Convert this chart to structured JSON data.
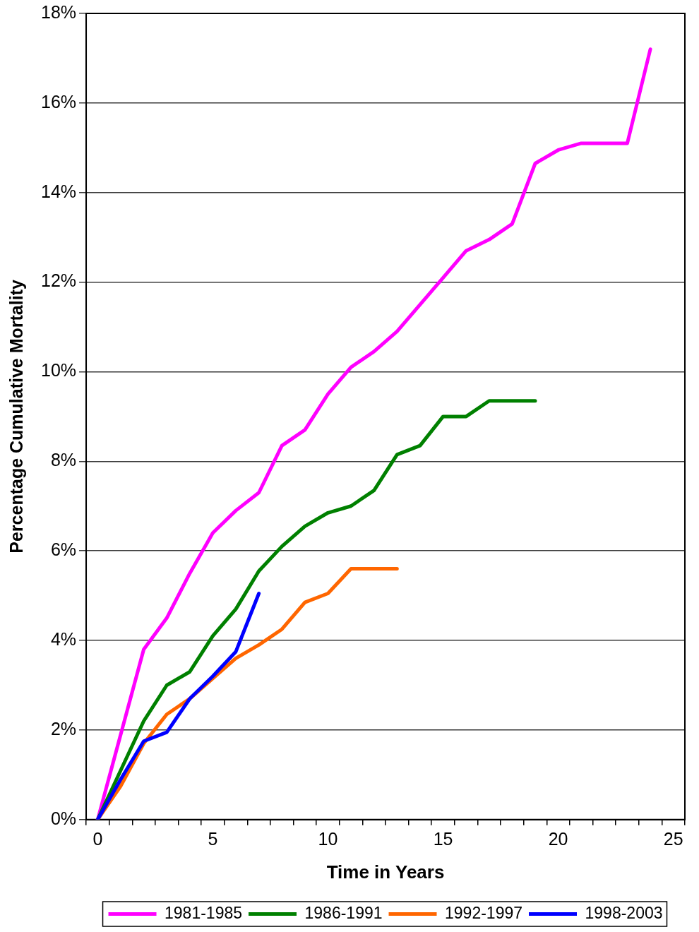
{
  "chart_data": {
    "type": "line",
    "xlabel": "Time in Years",
    "ylabel": "Percentage Cumulative Mortality",
    "categories": [
      "0",
      null,
      null,
      null,
      null,
      "5",
      null,
      null,
      null,
      null,
      "10",
      null,
      null,
      null,
      null,
      "15",
      null,
      null,
      null,
      null,
      "20",
      null,
      null,
      null,
      null,
      "25"
    ],
    "series": [
      {
        "name": "1981-1985",
        "color": "#ff00ff",
        "values": [
          0,
          1.9,
          3.8,
          4.5,
          5.5,
          6.4,
          6.9,
          7.3,
          8.35,
          8.7,
          9.5,
          10.1,
          10.45,
          10.9,
          11.5,
          12.1,
          12.7,
          12.95,
          13.3,
          14.65,
          14.95,
          15.1,
          15.1,
          15.1,
          17.2,
          null
        ]
      },
      {
        "name": "1986-1991",
        "color": "#008000",
        "values": [
          0,
          1.1,
          2.2,
          3.0,
          3.3,
          4.1,
          4.7,
          5.55,
          6.1,
          6.55,
          6.85,
          7.0,
          7.35,
          8.15,
          8.35,
          9.0,
          9.0,
          9.35,
          9.35,
          9.35,
          null,
          null,
          null,
          null,
          null,
          null
        ]
      },
      {
        "name": "1992-1997",
        "color": "#ff6600",
        "values": [
          0,
          0.75,
          1.7,
          2.35,
          2.7,
          3.15,
          3.6,
          3.9,
          4.25,
          4.85,
          5.05,
          5.6,
          5.6,
          5.6,
          null,
          null,
          null,
          null,
          null,
          null,
          null,
          null,
          null,
          null,
          null,
          null
        ]
      },
      {
        "name": "1998-2003",
        "color": "#0000ff",
        "values": [
          0,
          0.9,
          1.75,
          1.95,
          2.7,
          3.2,
          3.75,
          5.05,
          null,
          null,
          null,
          null,
          null,
          null,
          null,
          null,
          null,
          null,
          null,
          null,
          null,
          null,
          null,
          null,
          null,
          null
        ]
      }
    ],
    "ylim": [
      0,
      18
    ],
    "yticks": [
      {
        "value": 0,
        "label": "0%"
      },
      {
        "value": 2,
        "label": "2%"
      },
      {
        "value": 4,
        "label": "4%"
      },
      {
        "value": 6,
        "label": "6%"
      },
      {
        "value": 8,
        "label": "8%"
      },
      {
        "value": 10,
        "label": "10%"
      },
      {
        "value": 12,
        "label": "12%"
      },
      {
        "value": 14,
        "label": "14%"
      },
      {
        "value": 16,
        "label": "16%"
      },
      {
        "value": 18,
        "label": "18%"
      }
    ],
    "grid": "y",
    "legend": "bottom",
    "marker": "none",
    "line_style": "solid"
  }
}
